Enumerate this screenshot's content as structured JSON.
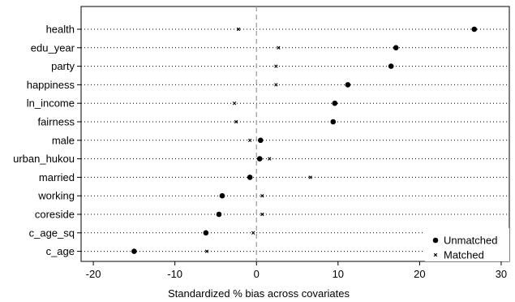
{
  "chart_data": {
    "type": "scatter",
    "xlabel": "Standardized % bias across covariates",
    "xlim": [
      -21.5,
      31
    ],
    "x_ticks": [
      -20,
      -10,
      0,
      10,
      20,
      30
    ],
    "x_tick_labels": [
      "-20",
      "-10",
      "0",
      "10",
      "20",
      "30"
    ],
    "reference_line_x": 0,
    "grid": "dotted horizontal lines per covariate",
    "categories": [
      "health",
      "edu_year",
      "party",
      "happiness",
      "ln_income",
      "fairness",
      "male",
      "urban_hukou",
      "married",
      "working",
      "coreside",
      "c_age_sq",
      "c_age"
    ],
    "series": [
      {
        "name": "Unmatched",
        "marker": "circle",
        "values": [
          26.7,
          17.1,
          16.5,
          11.2,
          9.6,
          9.4,
          0.5,
          0.4,
          -0.8,
          -4.2,
          -4.6,
          -6.2,
          -15.0
        ]
      },
      {
        "name": "Matched",
        "marker": "x",
        "values": [
          -2.2,
          2.7,
          2.4,
          2.4,
          -2.7,
          -2.5,
          -0.8,
          1.6,
          6.6,
          0.7,
          0.7,
          -0.4,
          -6.1
        ]
      }
    ],
    "legend": {
      "position": "bottom-right",
      "entries": [
        "Unmatched",
        "Matched"
      ]
    }
  }
}
